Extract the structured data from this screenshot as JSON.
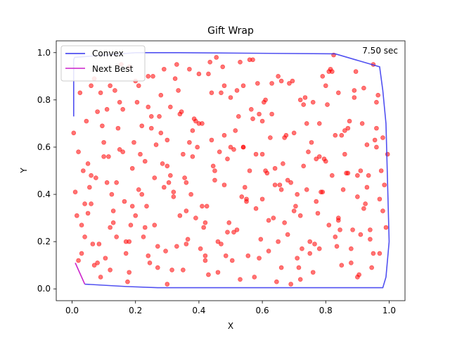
{
  "chart_data": {
    "type": "scatter",
    "title": "Gift Wrap",
    "xlabel": "X",
    "ylabel": "Y",
    "xlim": [
      -0.05,
      1.05
    ],
    "ylim": [
      -0.05,
      1.05
    ],
    "xticks": [
      "0.0",
      "0.2",
      "0.4",
      "0.6",
      "0.8",
      "1.0"
    ],
    "yticks": [
      "0.0",
      "0.2",
      "0.4",
      "0.6",
      "0.8",
      "1.0"
    ],
    "annotation": "7.50 sec",
    "legend": {
      "position": "top-left",
      "entries": [
        {
          "label": "Convex",
          "color": "#3333ee"
        },
        {
          "label": "Next Best",
          "color": "#cc22cc"
        }
      ]
    },
    "point_color": "#ff0000",
    "hull": {
      "name": "Convex",
      "color": "#3333ee",
      "x": [
        0.005,
        0.005,
        0.008,
        0.2,
        0.32,
        0.83,
        0.97,
        0.98,
        0.99,
        1.0,
        0.99,
        0.98,
        0.6,
        0.27,
        0.17,
        0.04
      ],
      "y": [
        0.73,
        0.97,
        0.98,
        1.0,
        1.0,
        0.995,
        0.94,
        0.84,
        0.7,
        0.2,
        0.05,
        0.005,
        0.005,
        0.005,
        0.01,
        0.02
      ]
    },
    "next_best": {
      "name": "Next Best",
      "color": "#cc22cc",
      "x": [
        0.04,
        0.01
      ],
      "y": [
        0.02,
        0.11
      ]
    },
    "points": {
      "x": [
        0.005,
        0.02,
        0.03,
        0.05,
        0.06,
        0.08,
        0.09,
        0.11,
        0.12,
        0.14,
        0.16,
        0.18,
        0.2,
        0.22,
        0.24,
        0.26,
        0.28,
        0.3,
        0.32,
        0.34,
        0.36,
        0.38,
        0.4,
        0.42,
        0.44,
        0.46,
        0.48,
        0.5,
        0.52,
        0.54,
        0.56,
        0.58,
        0.6,
        0.62,
        0.64,
        0.66,
        0.68,
        0.7,
        0.72,
        0.74,
        0.76,
        0.78,
        0.8,
        0.82,
        0.84,
        0.86,
        0.88,
        0.9,
        0.92,
        0.94,
        0.96,
        0.98,
        0.01,
        0.04,
        0.07,
        0.1,
        0.13,
        0.15,
        0.17,
        0.19,
        0.21,
        0.23,
        0.25,
        0.27,
        0.29,
        0.31,
        0.33,
        0.35,
        0.37,
        0.39,
        0.41,
        0.43,
        0.45,
        0.47,
        0.49,
        0.51,
        0.53,
        0.55,
        0.57,
        0.59,
        0.61,
        0.63,
        0.65,
        0.67,
        0.69,
        0.71,
        0.73,
        0.75,
        0.77,
        0.79,
        0.81,
        0.83,
        0.85,
        0.87,
        0.89,
        0.91,
        0.93,
        0.95,
        0.97,
        0.02,
        0.05,
        0.08,
        0.11,
        0.14,
        0.17,
        0.2,
        0.23,
        0.26,
        0.29,
        0.32,
        0.35,
        0.38,
        0.41,
        0.44,
        0.47,
        0.5,
        0.53,
        0.56,
        0.59,
        0.62,
        0.65,
        0.68,
        0.71,
        0.74,
        0.77,
        0.8,
        0.83,
        0.86,
        0.89,
        0.92,
        0.95,
        0.98,
        0.03,
        0.06,
        0.09,
        0.12,
        0.15,
        0.18,
        0.21,
        0.24,
        0.27,
        0.3,
        0.33,
        0.36,
        0.39,
        0.42,
        0.45,
        0.48,
        0.51,
        0.54,
        0.57,
        0.6,
        0.63,
        0.66,
        0.69,
        0.72,
        0.75,
        0.78,
        0.81,
        0.84,
        0.87,
        0.9,
        0.93,
        0.96,
        0.99,
        0.015,
        0.045,
        0.075,
        0.105,
        0.135,
        0.165,
        0.195,
        0.225,
        0.255,
        0.285,
        0.315,
        0.345,
        0.375,
        0.405,
        0.435,
        0.465,
        0.495,
        0.525,
        0.555,
        0.585,
        0.615,
        0.645,
        0.675,
        0.705,
        0.735,
        0.765,
        0.795,
        0.825,
        0.855,
        0.885,
        0.915,
        0.945,
        0.975,
        0.025,
        0.055,
        0.085,
        0.115,
        0.145,
        0.175,
        0.205,
        0.235,
        0.265,
        0.295,
        0.325,
        0.355,
        0.385,
        0.415,
        0.445,
        0.475,
        0.505,
        0.535,
        0.565,
        0.595,
        0.625,
        0.655,
        0.685,
        0.715,
        0.745,
        0.775,
        0.805,
        0.835,
        0.865,
        0.895,
        0.925,
        0.955,
        0.985,
        0.035,
        0.065,
        0.095,
        0.125,
        0.155,
        0.185,
        0.215,
        0.245,
        0.275,
        0.305,
        0.335,
        0.365,
        0.395,
        0.425,
        0.455,
        0.485,
        0.515,
        0.545,
        0.575,
        0.605,
        0.635,
        0.665,
        0.695,
        0.725,
        0.755,
        0.785,
        0.815,
        0.845,
        0.875,
        0.905,
        0.935,
        0.965,
        0.995,
        0.04,
        0.1,
        0.16,
        0.22,
        0.28,
        0.34,
        0.4,
        0.46,
        0.52,
        0.58,
        0.64,
        0.7,
        0.76,
        0.82,
        0.88,
        0.94,
        0.07,
        0.13,
        0.19,
        0.25,
        0.31,
        0.37,
        0.43,
        0.49,
        0.55,
        0.61,
        0.67,
        0.73,
        0.79,
        0.85,
        0.91,
        0.97,
        0.06,
        0.12,
        0.18,
        0.24,
        0.3,
        0.36,
        0.42,
        0.48,
        0.54,
        0.6,
        0.66,
        0.72,
        0.78,
        0.84,
        0.9,
        0.96
      ],
      "y": [
        0.66,
        0.12,
        0.27,
        0.53,
        0.36,
        0.75,
        0.05,
        0.45,
        0.86,
        0.22,
        0.58,
        0.94,
        0.31,
        0.69,
        0.14,
        0.47,
        0.82,
        0.02,
        0.39,
        0.74,
        0.19,
        0.56,
        0.91,
        0.28,
        0.63,
        0.07,
        0.44,
        0.81,
        0.25,
        0.6,
        0.97,
        0.34,
        0.71,
        0.16,
        0.51,
        0.88,
        0.23,
        0.66,
        0.04,
        0.42,
        0.79,
        0.17,
        0.54,
        0.92,
        0.29,
        0.67,
        0.11,
        0.48,
        0.85,
        0.21,
        0.6,
        0.33,
        0.41,
        0.22,
        0.89,
        0.62,
        0.33,
        0.79,
        0.15,
        0.51,
        0.86,
        0.26,
        0.68,
        0.09,
        0.43,
        0.77,
        0.18,
        0.57,
        0.93,
        0.3,
        0.7,
        0.06,
        0.46,
        0.83,
        0.24,
        0.59,
        0.96,
        0.37,
        0.72,
        0.13,
        0.5,
        0.87,
        0.2,
        0.64,
        0.02,
        0.4,
        0.78,
        0.15,
        0.55,
        0.9,
        0.27,
        0.65,
        0.1,
        0.49,
        0.84,
        0.23,
        0.61,
        0.95,
        0.38,
        0.58,
        0.32,
        0.11,
        0.76,
        0.45,
        0.2,
        0.88,
        0.54,
        0.27,
        0.93,
        0.41,
        0.08,
        0.67,
        0.35,
        0.83,
        0.19,
        0.6,
        0.04,
        0.5,
        0.74,
        0.29,
        0.9,
        0.46,
        0.13,
        0.7,
        0.37,
        0.86,
        0.22,
        0.57,
        0.81,
        0.34,
        0.15,
        0.64,
        0.15,
        0.48,
        0.83,
        0.26,
        0.59,
        0.07,
        0.42,
        0.77,
        0.18,
        0.63,
        0.95,
        0.33,
        0.71,
        0.12,
        0.5,
        0.86,
        0.24,
        0.6,
        0.97,
        0.38,
        0.74,
        0.09,
        0.45,
        0.8,
        0.2,
        0.56,
        0.92,
        0.3,
        0.68,
        0.05,
        0.43,
        0.79,
        0.26,
        0.31,
        0.71,
        0.47,
        0.13,
        0.84,
        0.37,
        0.62,
        0.22,
        0.9,
        0.53,
        0.08,
        0.75,
        0.4,
        0.17,
        0.96,
        0.58,
        0.28,
        0.73,
        0.14,
        0.87,
        0.49,
        0.03,
        0.65,
        0.35,
        0.81,
        0.19,
        0.55,
        0.99,
        0.42,
        0.25,
        0.7,
        0.09,
        0.5,
        0.83,
        0.43,
        0.19,
        0.56,
        0.68,
        0.03,
        0.79,
        0.35,
        0.61,
        0.16,
        0.89,
        0.47,
        0.72,
        0.26,
        0.52,
        0.94,
        0.12,
        0.39,
        0.76,
        0.21,
        0.64,
        0.44,
        0.87,
        0.09,
        0.58,
        0.32,
        0.78,
        0.18,
        0.49,
        0.92,
        0.36,
        0.63,
        0.44,
        0.5,
        0.19,
        0.69,
        0.4,
        0.95,
        0.27,
        0.57,
        0.11,
        0.73,
        0.45,
        0.84,
        0.21,
        0.6,
        0.35,
        0.98,
        0.14,
        0.67,
        0.43,
        0.05,
        0.79,
        0.3,
        0.53,
        0.88,
        0.17,
        0.62,
        0.41,
        0.93,
        0.25,
        0.71,
        0.06,
        0.48,
        0.82,
        0.57,
        0.36,
        0.56,
        0.76,
        0.4,
        0.66,
        0.31,
        0.7,
        0.2,
        0.84,
        0.57,
        0.44,
        0.33,
        0.07,
        0.48,
        0.17,
        0.25,
        0.1,
        0.28,
        0.35,
        0.73,
        0.48,
        0.62,
        0.91,
        0.55,
        0.38,
        0.8,
        0.28,
        0.52,
        0.41,
        0.65,
        0.5,
        0.15,
        0.86,
        0.08,
        0.2,
        0.9,
        0.52,
        0.45,
        0.14,
        0.65,
        0.86,
        0.57,
        0.42,
        0.31,
        0.7,
        0.83,
        0.39,
        0.68
      ]
    }
  }
}
